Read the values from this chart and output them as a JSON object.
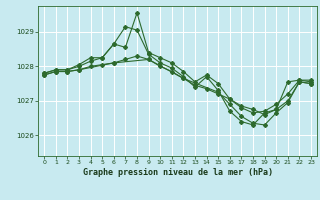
{
  "title": "Graphe pression niveau de la mer (hPa)",
  "bg_color": "#c8eaf0",
  "grid_color": "#ffffff",
  "line_color": "#2d6a2d",
  "xlim": [
    -0.5,
    23.5
  ],
  "ylim": [
    1025.4,
    1029.75
  ],
  "yticks": [
    1026,
    1027,
    1028,
    1029
  ],
  "xticks": [
    0,
    1,
    2,
    3,
    4,
    5,
    6,
    7,
    8,
    9,
    10,
    11,
    12,
    13,
    14,
    15,
    16,
    17,
    18,
    19,
    20,
    21,
    22,
    23
  ],
  "series": [
    {
      "x": [
        0,
        1,
        2,
        3,
        4,
        5,
        6,
        7,
        8,
        9,
        10,
        11,
        12,
        13,
        14,
        15,
        16,
        17,
        18,
        19,
        20,
        21,
        22,
        23
      ],
      "y": [
        1027.8,
        1027.9,
        1027.9,
        1028.0,
        1028.15,
        1028.25,
        1028.65,
        1028.55,
        1029.55,
        1028.4,
        1028.25,
        1028.1,
        1027.85,
        1027.55,
        1027.75,
        1027.5,
        1027.05,
        1026.8,
        1026.65,
        1026.7,
        1026.9,
        1027.2,
        1027.6,
        1027.6
      ]
    },
    {
      "x": [
        0,
        1,
        2,
        3,
        4,
        5,
        6,
        7,
        8,
        9,
        10,
        11,
        12,
        13,
        14,
        15,
        16,
        17,
        18,
        19,
        20,
        21,
        22,
        23
      ],
      "y": [
        1027.8,
        1027.9,
        1027.9,
        1028.05,
        1028.25,
        1028.25,
        1028.65,
        1029.15,
        1029.05,
        1028.35,
        1028.1,
        1027.95,
        1027.7,
        1027.4,
        1027.7,
        1027.3,
        1026.7,
        1026.4,
        1026.3,
        1026.65,
        1026.75,
        1027.55,
        1027.6,
        1027.55
      ]
    },
    {
      "x": [
        0,
        1,
        2,
        3,
        4,
        5,
        6,
        7,
        8,
        9,
        10,
        11,
        12,
        13,
        14,
        15,
        16,
        17,
        18,
        19,
        20,
        21,
        22,
        23
      ],
      "y": [
        1027.75,
        1027.85,
        1027.85,
        1027.9,
        1028.0,
        1028.05,
        1028.1,
        1028.2,
        1028.3,
        1028.2,
        1028.0,
        1027.85,
        1027.65,
        1027.45,
        1027.35,
        1027.2,
        1027.05,
        1026.85,
        1026.75,
        1026.6,
        1026.75,
        1027.0,
        1027.55,
        1027.5
      ]
    },
    {
      "x": [
        0,
        1,
        2,
        3,
        6,
        9,
        12,
        15,
        16,
        17,
        18,
        19,
        20,
        21,
        22,
        23
      ],
      "y": [
        1027.75,
        1027.85,
        1027.85,
        1027.9,
        1028.1,
        1028.2,
        1027.65,
        1027.25,
        1026.9,
        1026.55,
        1026.35,
        1026.3,
        1026.65,
        1026.95,
        1027.55,
        1027.5
      ]
    }
  ]
}
